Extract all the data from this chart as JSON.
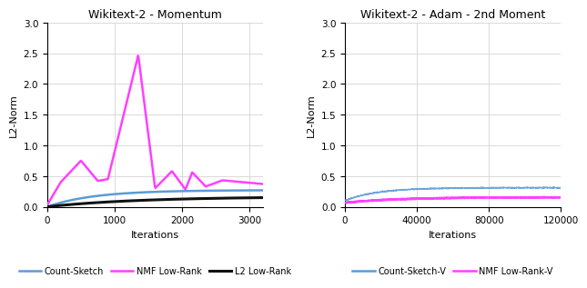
{
  "left_title": "Wikitext-2 - Momentum",
  "right_title": "Wikitext-2 - Adam - 2nd Moment",
  "ylabel": "L2-Norm",
  "xlabel": "Iterations",
  "left_xlim": [
    0,
    3200
  ],
  "left_ylim": [
    0,
    3.0
  ],
  "right_xlim": [
    0,
    120000
  ],
  "right_ylim": [
    0,
    3.0
  ],
  "left_xticks": [
    0,
    1000,
    2000,
    3000
  ],
  "right_xticks": [
    0,
    40000,
    80000,
    120000
  ],
  "yticks": [
    0,
    0.5,
    1.0,
    1.5,
    2.0,
    2.5,
    3.0
  ],
  "colors": {
    "count_sketch": "#5b9bd5",
    "nmf_low_rank": "#ff40ff",
    "l2_low_rank": "#111111",
    "count_sketch_v": "#5b9bd5",
    "nmf_low_rank_v": "#ff40ff"
  },
  "legend_left": [
    "Count-Sketch",
    "NMF Low-Rank",
    "L2 Low-Rank"
  ],
  "legend_right": [
    "Count-Sketch-V",
    "NMF Low-Rank-V"
  ],
  "figsize": [
    6.34,
    3.22
  ],
  "dpi": 100
}
